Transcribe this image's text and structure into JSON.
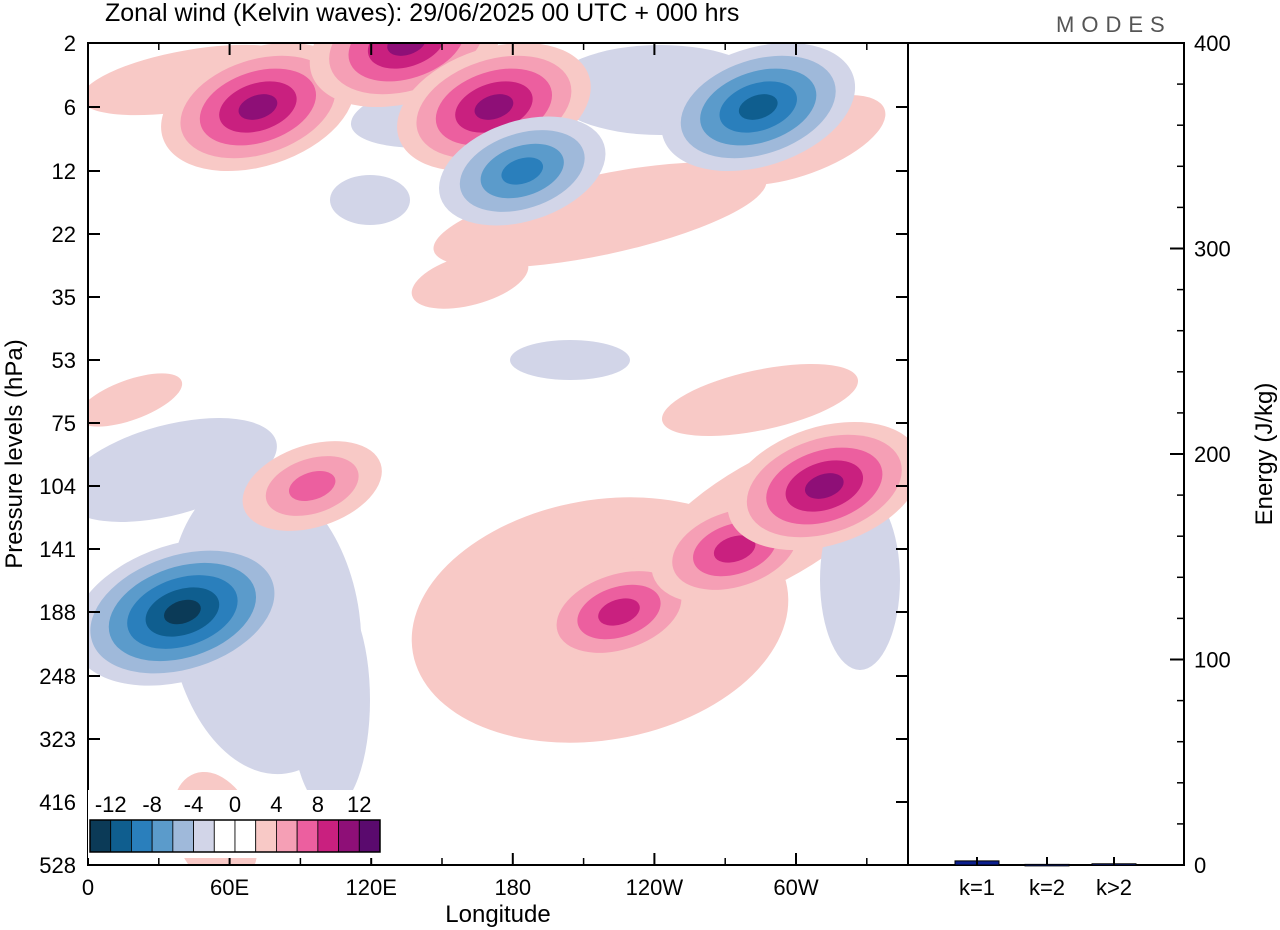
{
  "header": {
    "title": "Zonal wind (Kelvin waves):  29/06/2025  00 UTC  + 000 hrs",
    "logo": "MODES"
  },
  "chart_data": [
    {
      "type": "heatmap",
      "title": "Zonal wind (Kelvin waves):  29/06/2025  00 UTC  + 000 hrs",
      "xlabel": "Longitude",
      "ylabel": "Pressure levels (hPa)",
      "x_ticks": [
        "0",
        "60E",
        "120E",
        "180",
        "120W",
        "60W"
      ],
      "x_tick_degrees": [
        0,
        60,
        120,
        180,
        240,
        300
      ],
      "xlim": [
        0,
        360
      ],
      "y_ticks": [
        "2",
        "6",
        "12",
        "22",
        "35",
        "53",
        "75",
        "104",
        "141",
        "188",
        "248",
        "323",
        "416",
        "528"
      ],
      "colorbar": {
        "labels": [
          "-12",
          "-8",
          "-4",
          "0",
          "4",
          "8",
          "12"
        ],
        "label_values": [
          -12,
          -8,
          -4,
          0,
          4,
          8,
          12
        ],
        "levels": [
          -14,
          -12,
          -10,
          -8,
          -6,
          -4,
          -2,
          0,
          2,
          4,
          6,
          8,
          10,
          12,
          14
        ],
        "colors": [
          "#0b3a57",
          "#0f5e8f",
          "#2a7fbc",
          "#5b9bcb",
          "#9fb9da",
          "#d2d5e8",
          "#ffffff",
          "#ffffff",
          "#f8c9c6",
          "#f59fb5",
          "#ec5f9f",
          "#c9207f",
          "#8e0f77",
          "#5a0a6e"
        ]
      },
      "features": [
        {
          "lon": 40,
          "level": "188",
          "value": -13
        },
        {
          "lon": 72,
          "level": "6",
          "value": 9
        },
        {
          "lon": 135,
          "level": "2",
          "value": 10
        },
        {
          "lon": 172,
          "level": "6",
          "value": 9
        },
        {
          "lon": 184,
          "level": "12",
          "value": -7
        },
        {
          "lon": 225,
          "level": "188",
          "value": 7
        },
        {
          "lon": 274,
          "level": "141",
          "value": 8
        },
        {
          "lon": 312,
          "level": "104",
          "value": 9
        },
        {
          "lon": 284,
          "level": "6",
          "value": -9
        },
        {
          "lon": 95,
          "level": "104",
          "value": 6
        }
      ]
    },
    {
      "type": "bar",
      "categories": [
        "k=1",
        "k=2",
        "k>2"
      ],
      "values": [
        2,
        0.3,
        0.6
      ],
      "ylabel": "Energy (J/kg)",
      "ylim": [
        0,
        400
      ],
      "y_ticks": [
        "0",
        "100",
        "200",
        "300",
        "400"
      ],
      "bar_color": "#0b1f8f"
    }
  ]
}
